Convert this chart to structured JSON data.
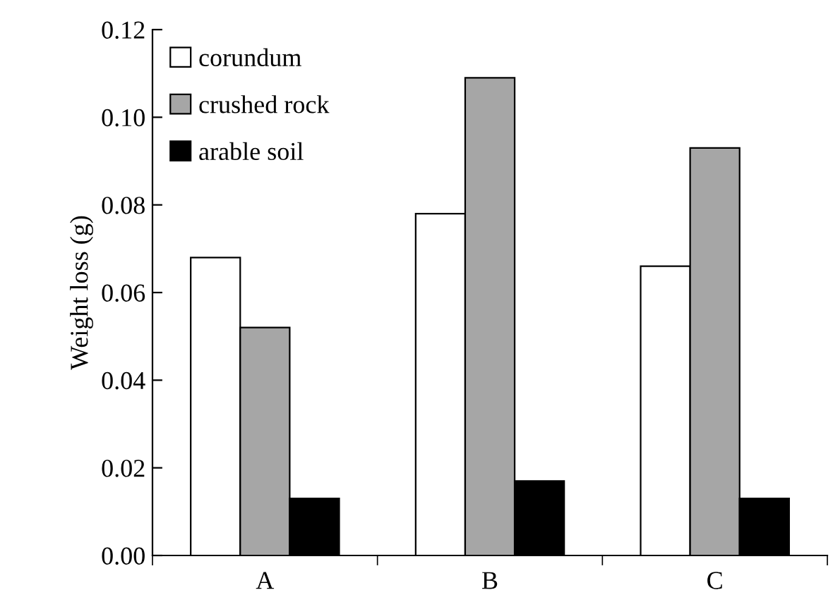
{
  "chart_data": {
    "type": "bar",
    "ylabel": "Weight loss (g)",
    "categories": [
      "A",
      "B",
      "C"
    ],
    "series": [
      {
        "name": "corundum",
        "color": "#ffffff",
        "values": [
          0.068,
          0.078,
          0.066
        ]
      },
      {
        "name": "crushed rock",
        "color": "#a6a6a6",
        "values": [
          0.052,
          0.109,
          0.093
        ]
      },
      {
        "name": "arable soil",
        "color": "#000000",
        "values": [
          0.013,
          0.017,
          0.013
        ]
      }
    ],
    "ylim": [
      0,
      0.12
    ],
    "yticks": [
      {
        "value": 0,
        "label": "0.00"
      },
      {
        "value": 0.02,
        "label": "0.02"
      },
      {
        "value": 0.04,
        "label": "0.04"
      },
      {
        "value": 0.06,
        "label": "0.06"
      },
      {
        "value": 0.08,
        "label": "0.08"
      },
      {
        "value": 0.1,
        "label": "0.10"
      },
      {
        "value": 0.12,
        "label": "0.12"
      }
    ],
    "grid": false,
    "legend": "top left"
  }
}
